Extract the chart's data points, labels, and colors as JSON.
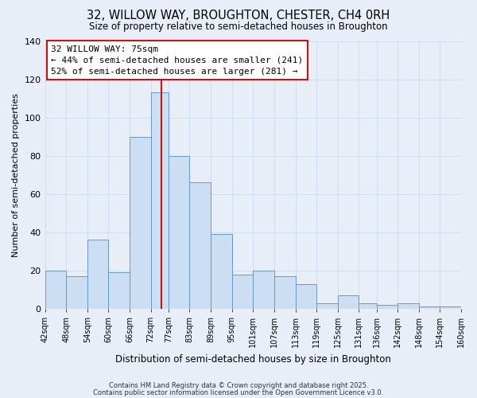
{
  "title": "32, WILLOW WAY, BROUGHTON, CHESTER, CH4 0RH",
  "subtitle": "Size of property relative to semi-detached houses in Broughton",
  "xlabel": "Distribution of semi-detached houses by size in Broughton",
  "ylabel": "Number of semi-detached properties",
  "bar_color": "#ccdff2",
  "bar_edge_color": "#6699cc",
  "grid_color": "#d0dff0",
  "background_color": "#e8eef8",
  "plot_bg_color": "#e8eef8",
  "bins": [
    42,
    48,
    54,
    60,
    66,
    72,
    77,
    83,
    89,
    95,
    101,
    107,
    113,
    119,
    125,
    131,
    136,
    142,
    148,
    154,
    160
  ],
  "bin_labels": [
    "42sqm",
    "48sqm",
    "54sqm",
    "60sqm",
    "66sqm",
    "72sqm",
    "77sqm",
    "83sqm",
    "89sqm",
    "95sqm",
    "101sqm",
    "107sqm",
    "113sqm",
    "119sqm",
    "125sqm",
    "131sqm",
    "136sqm",
    "142sqm",
    "148sqm",
    "154sqm",
    "160sqm"
  ],
  "counts": [
    20,
    17,
    36,
    19,
    90,
    113,
    80,
    66,
    39,
    18,
    20,
    17,
    13,
    3,
    7,
    3,
    2,
    3,
    1,
    1
  ],
  "property_size": 75,
  "vline_color": "#cc1111",
  "annotation_title": "32 WILLOW WAY: 75sqm",
  "annotation_line1": "← 44% of semi-detached houses are smaller (241)",
  "annotation_line2": "52% of semi-detached houses are larger (281) →",
  "annotation_box_color": "#ffffff",
  "annotation_box_edge": "#cc1111",
  "ylim": [
    0,
    140
  ],
  "yticks": [
    0,
    20,
    40,
    60,
    80,
    100,
    120,
    140
  ],
  "footer1": "Contains HM Land Registry data © Crown copyright and database right 2025.",
  "footer2": "Contains public sector information licensed under the Open Government Licence v3.0."
}
